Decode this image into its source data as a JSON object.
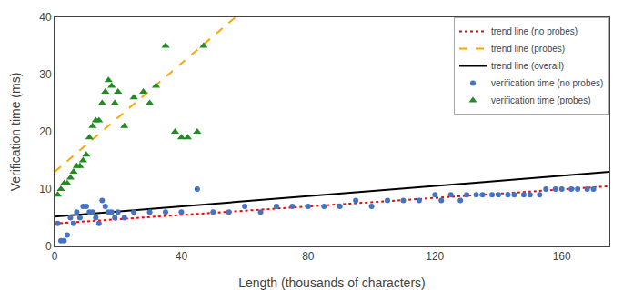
{
  "chart_data": {
    "type": "scatter",
    "xlabel": "Length (thousands of characters)",
    "ylabel": "Verification time (ms)",
    "xlim": [
      0,
      175
    ],
    "ylim": [
      0,
      40
    ],
    "xticks": [
      0,
      40,
      80,
      120,
      160
    ],
    "yticks": [
      0,
      10,
      20,
      30,
      40
    ],
    "grid": false,
    "legend": "upper right",
    "series": [
      {
        "name": "trend line (no probes)",
        "type": "line",
        "color": "#ff0000",
        "line_style": "dotted",
        "x": [
          0,
          175
        ],
        "values": [
          4.0,
          10.5
        ]
      },
      {
        "name": "trend line (probes)",
        "type": "line",
        "color": "#ffa500",
        "line_style": "dashed",
        "x": [
          0,
          57
        ],
        "values": [
          13.0,
          40.0
        ]
      },
      {
        "name": "trend line (overall)",
        "type": "line",
        "color": "#000000",
        "line_style": "solid",
        "x": [
          0,
          175
        ],
        "values": [
          5.2,
          13.0
        ]
      },
      {
        "name": "verification time (no probes)",
        "type": "scatter",
        "color": "#4472c4",
        "marker": "circle",
        "x": [
          1,
          2,
          3,
          4,
          5,
          6,
          7,
          8,
          9,
          10,
          11,
          12,
          13,
          14,
          15,
          16,
          17,
          18,
          19,
          20,
          22,
          25,
          30,
          35,
          40,
          45,
          50,
          55,
          60,
          65,
          70,
          75,
          80,
          85,
          90,
          95,
          100,
          105,
          110,
          115,
          120,
          122,
          125,
          128,
          130,
          133,
          135,
          138,
          140,
          143,
          145,
          148,
          150,
          153,
          155,
          158,
          160,
          163,
          165,
          168,
          170
        ],
        "values": [
          4,
          1,
          1,
          2,
          5,
          4,
          6,
          5,
          7,
          7,
          6,
          6,
          5,
          4,
          8,
          7,
          6,
          6,
          5,
          6,
          5,
          6,
          6,
          6,
          6,
          10,
          6,
          6,
          7,
          6,
          7,
          7,
          7,
          7,
          7,
          8,
          7,
          8,
          8,
          8,
          9,
          8,
          9,
          8,
          9,
          9,
          9,
          9,
          9,
          9,
          9,
          9,
          9,
          9,
          10,
          10,
          10,
          10,
          10,
          10,
          10
        ]
      },
      {
        "name": "verification time (probes)",
        "type": "scatter",
        "color": "#228B22",
        "marker": "triangle",
        "x": [
          1,
          2,
          3,
          4,
          5,
          6,
          7,
          8,
          9,
          10,
          11,
          12,
          13,
          14,
          15,
          16,
          17,
          18,
          19,
          20,
          22,
          25,
          28,
          30,
          32,
          35,
          38,
          40,
          42,
          45,
          47
        ],
        "values": [
          9,
          10,
          11,
          11,
          12,
          13,
          14,
          14,
          15,
          16,
          19,
          21,
          22,
          22,
          25,
          27,
          29,
          28,
          25,
          27,
          21,
          26,
          27,
          25,
          28,
          35,
          20,
          19,
          19,
          20,
          35
        ]
      }
    ]
  }
}
